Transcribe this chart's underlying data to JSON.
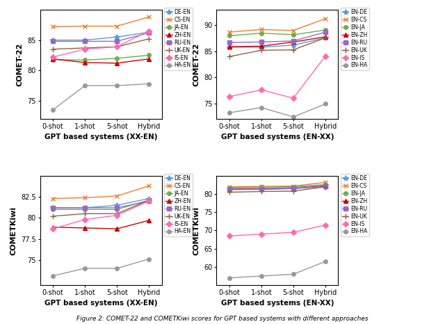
{
  "x_labels": [
    "0-shot",
    "1-shot",
    "5-shot",
    "Hybrid"
  ],
  "subplot_titles": [
    "GPT based systems (XX-EN)",
    "GPT based systems (EN-XX)",
    "GPT based systems (XX-EN)",
    "GPT based systems (EN-XX)"
  ],
  "y_labels": [
    "COMET-22",
    "COMET-22",
    "COMETKiwi",
    "COMETKiwi"
  ],
  "caption": "Figure 2: COMET-22 and COMETKiwi scores for GPT based systems with different approaches",
  "xx_en_comet22": {
    "DE-EN": [
      85.0,
      85.0,
      85.5,
      86.3
    ],
    "CS-EN": [
      87.2,
      87.3,
      87.3,
      88.8
    ],
    "JA-EN": [
      81.8,
      81.7,
      82.0,
      82.5
    ],
    "ZH-EN": [
      81.9,
      81.3,
      81.2,
      81.9
    ],
    "RU-EN": [
      84.8,
      84.8,
      84.8,
      86.2
    ],
    "UK-EN": [
      83.5,
      83.7,
      83.9,
      85.2
    ],
    "IS-EN": [
      82.2,
      83.5,
      83.9,
      86.5
    ],
    "HA-EN": [
      73.5,
      77.5,
      77.5,
      77.8
    ]
  },
  "en_xx_comet22": {
    "EN-DE": [
      85.8,
      85.8,
      86.2,
      87.6
    ],
    "EN-CS": [
      88.7,
      89.2,
      89.0,
      91.3
    ],
    "EN-JA": [
      88.0,
      88.5,
      88.2,
      89.1
    ],
    "EN-ZH": [
      85.9,
      86.0,
      86.8,
      87.8
    ],
    "EN-RU": [
      86.7,
      86.8,
      87.0,
      88.7
    ],
    "EN-UK": [
      84.0,
      85.2,
      85.3,
      87.6
    ],
    "EN-IS": [
      76.3,
      77.6,
      76.0,
      84.1
    ],
    "EN-HA": [
      73.2,
      74.2,
      72.4,
      74.9
    ]
  },
  "xx_en_kiwi": {
    "DE-EN": [
      81.2,
      81.2,
      81.5,
      82.3
    ],
    "CS-EN": [
      82.3,
      82.4,
      82.6,
      83.8
    ],
    "JA-EN": [
      81.0,
      81.0,
      81.0,
      82.1
    ],
    "ZH-EN": [
      78.9,
      78.8,
      78.7,
      79.7
    ],
    "RU-EN": [
      81.2,
      81.2,
      81.2,
      82.0
    ],
    "UK-EN": [
      80.2,
      80.5,
      80.5,
      82.1
    ],
    "IS-EN": [
      78.7,
      79.8,
      80.3,
      82.0
    ],
    "HA-EN": [
      73.1,
      74.0,
      74.0,
      75.1
    ]
  },
  "en_xx_kiwi": {
    "EN-DE": [
      81.5,
      81.5,
      81.8,
      82.5
    ],
    "EN-CS": [
      82.0,
      82.1,
      82.2,
      83.2
    ],
    "EN-JA": [
      81.8,
      81.9,
      82.0,
      82.6
    ],
    "EN-ZH": [
      81.3,
      81.4,
      81.5,
      82.2
    ],
    "EN-RU": [
      81.2,
      81.3,
      81.5,
      82.1
    ],
    "EN-UK": [
      80.5,
      80.7,
      80.8,
      82.0
    ],
    "EN-IS": [
      68.5,
      69.0,
      69.5,
      71.5
    ],
    "EN-HA": [
      57.0,
      57.5,
      58.0,
      61.5
    ]
  },
  "series_styles_xxen": {
    "DE-EN": {
      "color": "#5b9bd5",
      "marker": "*",
      "linestyle": "-"
    },
    "CS-EN": {
      "color": "#ed7d31",
      "marker": "x",
      "linestyle": "-"
    },
    "JA-EN": {
      "color": "#70ad47",
      "marker": "o",
      "linestyle": "-"
    },
    "ZH-EN": {
      "color": "#cc0000",
      "marker": "^",
      "linestyle": "-"
    },
    "RU-EN": {
      "color": "#9966cc",
      "marker": "s",
      "linestyle": "-"
    },
    "UK-EN": {
      "color": "#8b6347",
      "marker": "+",
      "linestyle": "-"
    },
    "IS-EN": {
      "color": "#ff69b4",
      "marker": "D",
      "linestyle": "-"
    },
    "HA-EN": {
      "color": "#999999",
      "marker": "o",
      "linestyle": "-"
    }
  },
  "series_styles_enxx": {
    "EN-DE": {
      "color": "#5b9bd5",
      "marker": "*",
      "linestyle": "-"
    },
    "EN-CS": {
      "color": "#ed7d31",
      "marker": "x",
      "linestyle": "-"
    },
    "EN-JA": {
      "color": "#70ad47",
      "marker": "o",
      "linestyle": "-"
    },
    "EN-ZH": {
      "color": "#cc0000",
      "marker": "^",
      "linestyle": "-"
    },
    "EN-RU": {
      "color": "#9966cc",
      "marker": "s",
      "linestyle": "-"
    },
    "EN-UK": {
      "color": "#8b6347",
      "marker": "+",
      "linestyle": "-"
    },
    "EN-IS": {
      "color": "#ff69b4",
      "marker": "D",
      "linestyle": "-"
    },
    "EN-HA": {
      "color": "#999999",
      "marker": "o",
      "linestyle": "-"
    }
  },
  "ylim_comet22_xxen": [
    72,
    90
  ],
  "ylim_comet22_enxx": [
    72,
    93
  ],
  "ylim_kiwi_xxen": [
    72,
    85
  ],
  "ylim_kiwi_enxx": [
    55,
    85
  ],
  "yticks_comet22_xxen": [
    75,
    80,
    85
  ],
  "yticks_comet22_enxx": [
    75,
    80,
    85,
    90
  ],
  "yticks_kiwi_xxen": [
    75.0,
    77.5,
    80.0,
    82.5
  ],
  "yticks_kiwi_enxx": [
    60,
    65,
    70,
    75,
    80
  ]
}
